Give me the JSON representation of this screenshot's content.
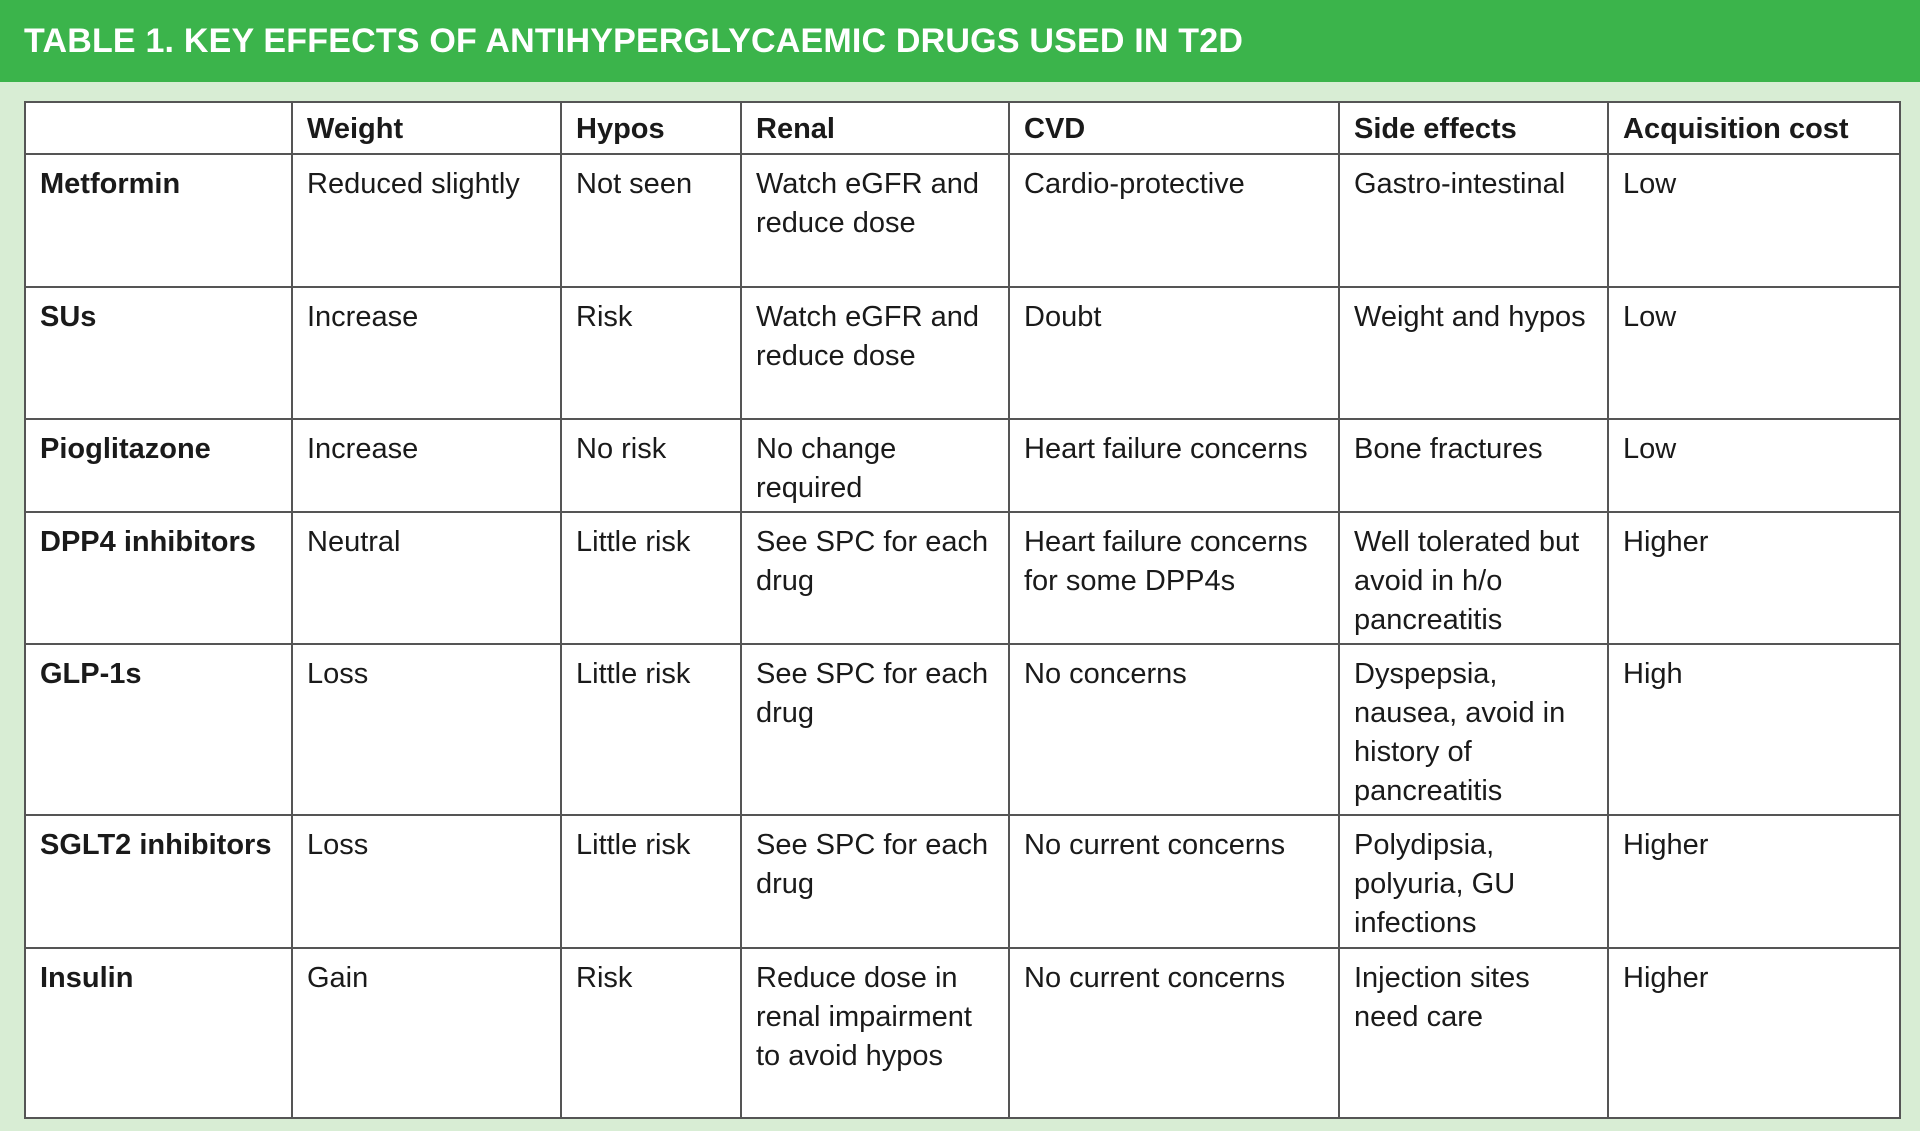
{
  "title": "TABLE 1. KEY EFFECTS OF ANTIHYPERGLYCAEMIC DRUGS USED IN T2D",
  "colors": {
    "banner": "#3bb44b",
    "background": "#d8edd4"
  },
  "table": {
    "headers": [
      "",
      "Weight",
      "Hypos",
      "Renal",
      "CVD",
      "Side effects",
      "Acquisition cost"
    ],
    "rows": [
      [
        "Metformin",
        "Reduced slightly",
        "Not seen",
        "Watch eGFR and reduce dose",
        "Cardio-protective",
        "Gastro-intestinal",
        "Low"
      ],
      [
        "SUs",
        "Increase",
        "Risk",
        "Watch eGFR and reduce dose",
        "Doubt",
        "Weight and hypos",
        "Low"
      ],
      [
        "Pioglitazone",
        "Increase",
        "No risk",
        "No change required",
        "Heart failure concerns",
        "Bone fractures",
        "Low"
      ],
      [
        "DPP4 inhibitors",
        "Neutral",
        "Little risk",
        "See SPC for each drug",
        "Heart failure concerns for some DPP4s",
        "Well tolerated but avoid in h/o pancreatitis",
        "Higher"
      ],
      [
        "GLP-1s",
        "Loss",
        "Little risk",
        "See SPC for each drug",
        "No concerns",
        "Dyspepsia, nausea, avoid in history of pancreatitis",
        "High"
      ],
      [
        "SGLT2 inhibitors",
        "Loss",
        "Little risk",
        "See SPC for each drug",
        "No current concerns",
        "Polydipsia, polyuria, GU infections",
        "Higher"
      ],
      [
        "Insulin",
        "Gain",
        "Risk",
        "Reduce dose in renal impairment to avoid hypos",
        "No current concerns",
        "Injection sites need care",
        "Higher"
      ]
    ]
  }
}
